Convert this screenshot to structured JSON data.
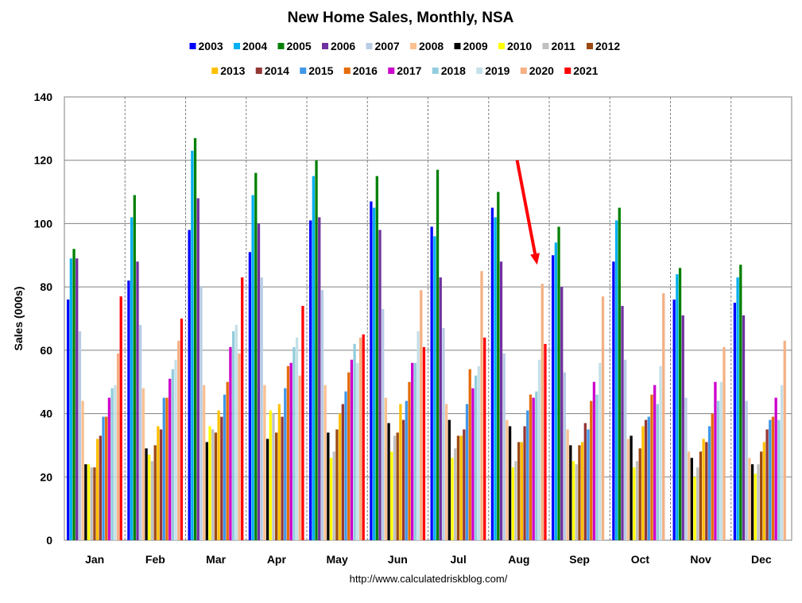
{
  "chart_data": {
    "type": "bar",
    "title": "New Home Sales, Monthly, NSA",
    "ylabel": "Sales (000s)",
    "xlabel": "",
    "source": "http://www.calculatedriskblog.com/",
    "ylim": [
      0,
      140
    ],
    "yticks": [
      "0",
      "20",
      "40",
      "60",
      "80",
      "100",
      "120",
      "140"
    ],
    "grid": true,
    "legend_position": "top",
    "categories": [
      "Jan",
      "Feb",
      "Mar",
      "Apr",
      "May",
      "Jun",
      "Jul",
      "Aug",
      "Sep",
      "Oct",
      "Nov",
      "Dec"
    ],
    "series": [
      {
        "name": "2003",
        "color": "#0000ff",
        "values": [
          76,
          82,
          98,
          91,
          101,
          107,
          99,
          105,
          90,
          88,
          76,
          75
        ]
      },
      {
        "name": "2004",
        "color": "#00b0f0",
        "values": [
          89,
          102,
          123,
          109,
          115,
          105,
          96,
          102,
          94,
          101,
          84,
          83
        ]
      },
      {
        "name": "2005",
        "color": "#008000",
        "values": [
          92,
          109,
          127,
          116,
          120,
          115,
          117,
          110,
          99,
          105,
          86,
          87
        ]
      },
      {
        "name": "2006",
        "color": "#7030a0",
        "values": [
          89,
          88,
          108,
          100,
          102,
          98,
          83,
          88,
          80,
          74,
          71,
          71
        ]
      },
      {
        "name": "2007",
        "color": "#b8cce4",
        "values": [
          66,
          68,
          80,
          83,
          79,
          73,
          67,
          59,
          53,
          57,
          45,
          44
        ]
      },
      {
        "name": "2008",
        "color": "#fac090",
        "values": [
          44,
          48,
          49,
          49,
          49,
          45,
          43,
          38,
          35,
          32,
          28,
          26
        ]
      },
      {
        "name": "2009",
        "color": "#000000",
        "values": [
          24,
          29,
          31,
          32,
          34,
          37,
          38,
          36,
          30,
          33,
          26,
          24
        ]
      },
      {
        "name": "2010",
        "color": "#ffff00",
        "values": [
          24,
          27,
          36,
          41,
          26,
          28,
          26,
          23,
          25,
          23,
          20,
          21
        ]
      },
      {
        "name": "2011",
        "color": "#c0c0c0",
        "values": [
          23,
          25,
          35,
          40,
          28,
          33,
          29,
          25,
          24,
          25,
          23,
          24
        ]
      },
      {
        "name": "2012",
        "color": "#9c4a12",
        "values": [
          23,
          30,
          34,
          34,
          35,
          34,
          33,
          31,
          30,
          29,
          28,
          28
        ]
      },
      {
        "name": "2013",
        "color": "#ffc000",
        "values": [
          32,
          36,
          41,
          43,
          40,
          43,
          33,
          31,
          31,
          36,
          32,
          31
        ]
      },
      {
        "name": "2014",
        "color": "#953735",
        "values": [
          33,
          35,
          39,
          39,
          43,
          38,
          35,
          36,
          37,
          38,
          31,
          35
        ]
      },
      {
        "name": "2015",
        "color": "#4197e8",
        "values": [
          39,
          45,
          46,
          48,
          47,
          44,
          43,
          41,
          35,
          39,
          36,
          38
        ]
      },
      {
        "name": "2016",
        "color": "#e46c0a",
        "values": [
          39,
          45,
          50,
          55,
          53,
          50,
          54,
          46,
          44,
          46,
          40,
          39
        ]
      },
      {
        "name": "2017",
        "color": "#cc00cc",
        "values": [
          45,
          51,
          61,
          56,
          57,
          56,
          48,
          45,
          50,
          49,
          50,
          45
        ]
      },
      {
        "name": "2018",
        "color": "#93cddd",
        "values": [
          48,
          54,
          66,
          61,
          62,
          56,
          52,
          47,
          46,
          43,
          44,
          38
        ]
      },
      {
        "name": "2019",
        "color": "#c5e0e8",
        "values": [
          49,
          57,
          68,
          64,
          56,
          66,
          55,
          57,
          56,
          55,
          50,
          49
        ]
      },
      {
        "name": "2020",
        "color": "#f4b183",
        "values": [
          59,
          63,
          59,
          52,
          64,
          79,
          85,
          81,
          77,
          78,
          61,
          63
        ]
      },
      {
        "name": "2021",
        "color": "#ff0000",
        "values": [
          77,
          70,
          83,
          74,
          65,
          61,
          64,
          62,
          null,
          null,
          null,
          null
        ]
      }
    ],
    "annotations": [
      {
        "type": "arrow",
        "color": "#ff0000",
        "from": {
          "category": "Aug",
          "value": 120
        },
        "to": {
          "category": "Aug",
          "value": 87
        }
      }
    ]
  }
}
